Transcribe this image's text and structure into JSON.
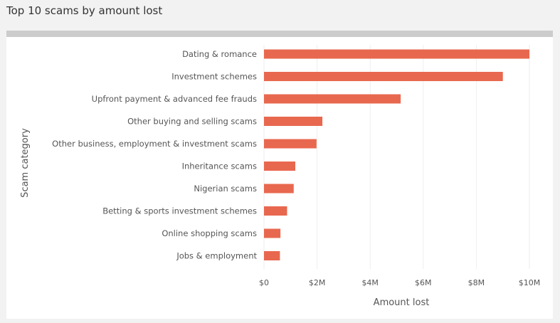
{
  "panel": {
    "title": "Top 10 scams by amount lost"
  },
  "colors": {
    "bar": "#E8684F",
    "grid": "#eeeeee",
    "text": "#555555",
    "header_bar": "#cccccc"
  },
  "chart_data": {
    "type": "bar",
    "orientation": "horizontal",
    "title": "Top 10 scams by amount lost",
    "xlabel": "Amount lost",
    "ylabel": "Scam category",
    "categories": [
      "Dating & romance",
      "Investment schemes",
      "Upfront payment & advanced fee frauds",
      "Other buying and selling scams",
      "Other business, employment & investment scams",
      "Inheritance scams",
      "Nigerian scams",
      "Betting & sports investment schemes",
      "Online shopping scams",
      "Jobs & employment"
    ],
    "values": [
      10000000,
      9000000,
      5150000,
      2200000,
      1980000,
      1180000,
      1120000,
      870000,
      620000,
      600000
    ],
    "xlim": [
      0,
      10000000
    ],
    "xticks": [
      0,
      2000000,
      4000000,
      6000000,
      8000000,
      10000000
    ],
    "xtick_labels": [
      "$0",
      "$2M",
      "$4M",
      "$6M",
      "$8M",
      "$10M"
    ],
    "grid": "vertical",
    "legend": "none"
  }
}
